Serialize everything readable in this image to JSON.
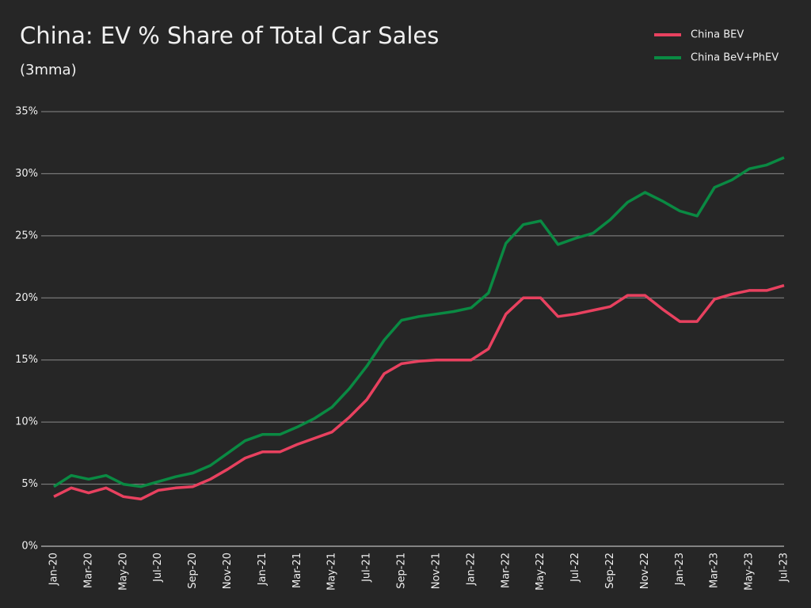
{
  "chart_data": {
    "type": "line",
    "title": "China: EV % Share of Total Car Sales",
    "subtitle": "(3mma)",
    "categories": [
      "Jan-20",
      null,
      "Mar-20",
      null,
      "May-20",
      null,
      "Jul-20",
      null,
      "Sep-20",
      null,
      "Nov-20",
      null,
      "Jan-21",
      null,
      "Mar-21",
      null,
      "May-21",
      null,
      "Jul-21",
      null,
      "Sep-21",
      null,
      "Nov-21",
      null,
      "Jan-22",
      null,
      "Mar-22",
      null,
      "May-22",
      null,
      "Jul-22",
      null,
      "Sep-22",
      null,
      "Nov-22",
      null,
      "Jan-23",
      null,
      "Mar-23",
      null,
      "May-23",
      null,
      "Jul-23"
    ],
    "series": [
      {
        "name": "China BEV",
        "color": "#e8415f",
        "values": [
          4.0,
          4.7,
          4.3,
          4.7,
          4.0,
          3.8,
          4.5,
          4.7,
          4.8,
          5.4,
          6.2,
          7.1,
          7.6,
          7.6,
          8.2,
          8.7,
          9.2,
          10.4,
          11.8,
          13.9,
          14.7,
          14.9,
          15.0,
          15.0,
          15.0,
          15.9,
          18.7,
          20.0,
          20.0,
          18.5,
          18.7,
          19.0,
          19.3,
          20.2,
          20.2,
          19.1,
          18.1,
          18.1,
          19.9,
          20.3,
          20.6,
          20.6,
          21.0
        ]
      },
      {
        "name": "China BeV+PhEV",
        "color": "#0a8a43",
        "values": [
          4.8,
          5.7,
          5.4,
          5.7,
          5.0,
          4.8,
          5.2,
          5.6,
          5.9,
          6.5,
          7.5,
          8.5,
          9.0,
          9.0,
          9.6,
          10.3,
          11.2,
          12.7,
          14.5,
          16.6,
          18.2,
          18.5,
          18.7,
          18.9,
          19.2,
          20.4,
          24.4,
          25.9,
          26.2,
          24.3,
          24.8,
          25.2,
          26.3,
          27.7,
          28.5,
          27.8,
          27.0,
          26.6,
          28.9,
          29.5,
          30.4,
          30.7,
          31.3
        ]
      }
    ],
    "ylim": [
      0,
      35
    ],
    "yticks": [
      {
        "value": 0,
        "label": "0%"
      },
      {
        "value": 5,
        "label": "5%"
      },
      {
        "value": 10,
        "label": "10%"
      },
      {
        "value": 15,
        "label": "15%"
      },
      {
        "value": 20,
        "label": "20%"
      },
      {
        "value": 25,
        "label": "25%"
      },
      {
        "value": 30,
        "label": "30%"
      },
      {
        "value": 35,
        "label": "35%"
      }
    ],
    "grid": true,
    "legend": "top-right"
  }
}
